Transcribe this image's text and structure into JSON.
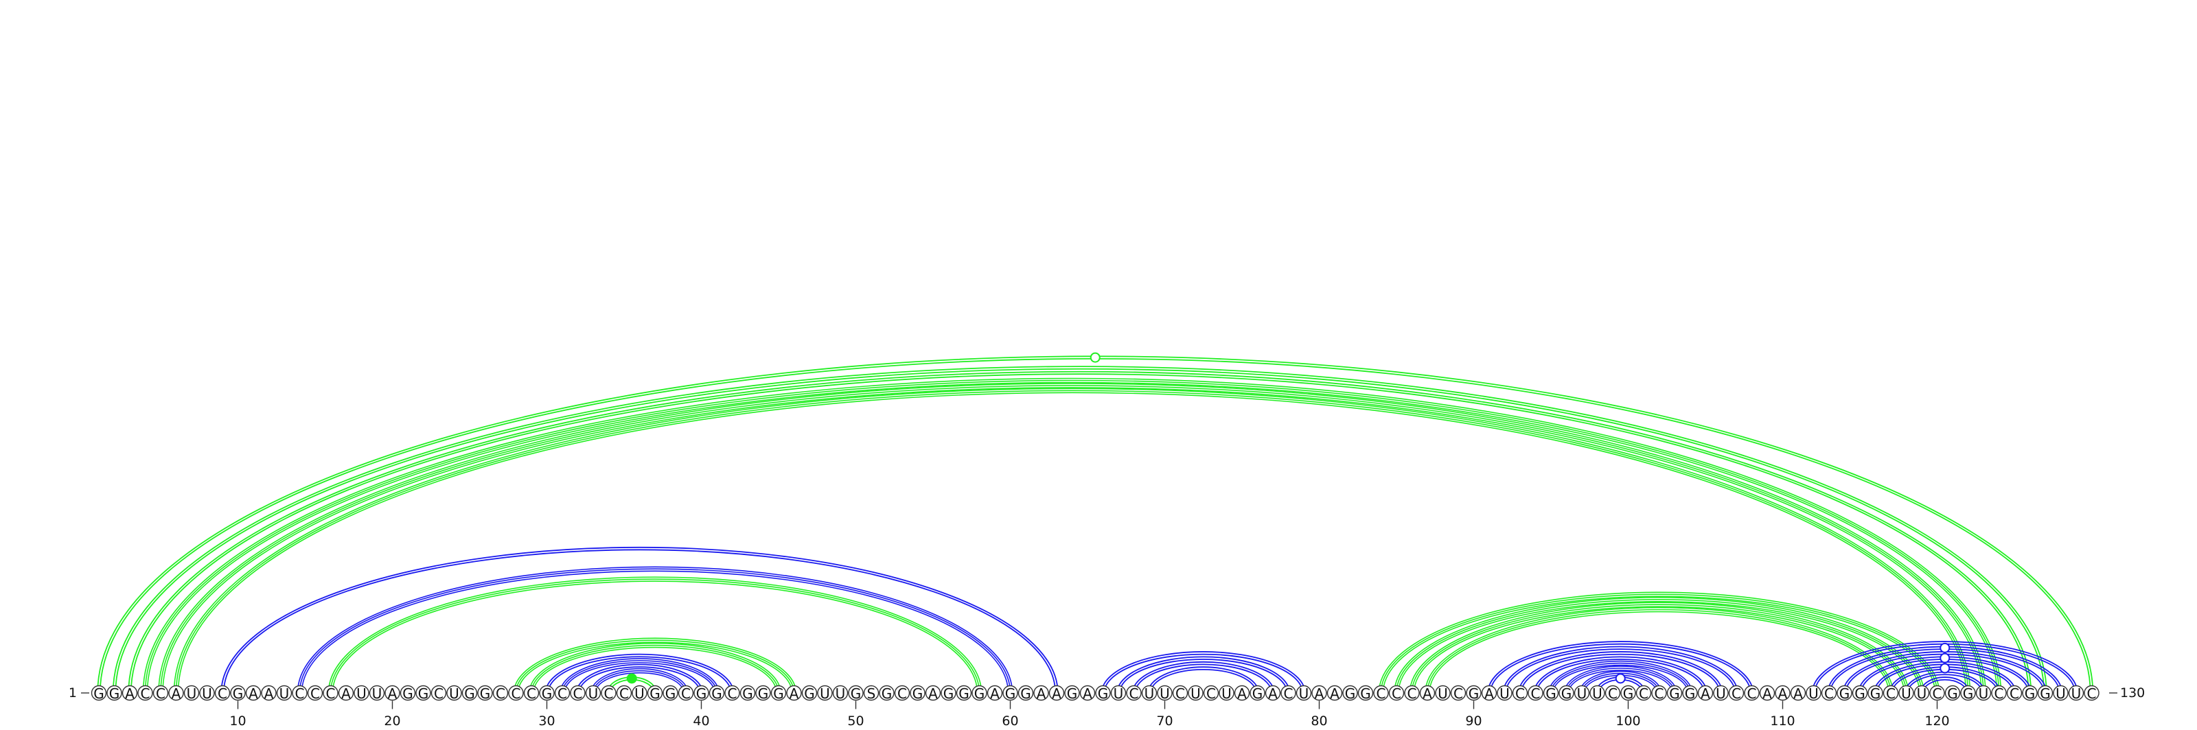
{
  "sequence": "GGACCAUUCGAAUCCCAUUAGGCUGGCCCGCCUCCUGGCGGCGGGAGUUGSGCGAGGGAGGAAGAGUCUUCUCUAGACUAAGGCCCAUCGAUCCGGUUCGCCGGAUCCAAAUCGGGCUUCGGUCCGGUUC",
  "start_label": "1",
  "end_label": "130",
  "ticks": [
    "10",
    "20",
    "30",
    "40",
    "50",
    "60",
    "70",
    "80",
    "90",
    "100",
    "110",
    "120"
  ],
  "colors": {
    "green": "#22ee22",
    "blue": "#1a1aee"
  },
  "arcs": [
    {
      "i": 1,
      "j": 130,
      "color": "green",
      "lines": 2
    },
    {
      "i": 2,
      "j": 127,
      "color": "green",
      "lines": 2
    },
    {
      "i": 3,
      "j": 126,
      "color": "green",
      "lines": 2
    },
    {
      "i": 4,
      "j": 124,
      "color": "green",
      "lines": 3
    },
    {
      "i": 5,
      "j": 123,
      "color": "green",
      "lines": 3
    },
    {
      "i": 6,
      "j": 122,
      "color": "green",
      "lines": 3
    },
    {
      "i": 9,
      "j": 63,
      "color": "blue",
      "lines": 2
    },
    {
      "i": 14,
      "j": 60,
      "color": "blue",
      "lines": 3
    },
    {
      "i": 16,
      "j": 58,
      "color": "green",
      "lines": 3
    },
    {
      "i": 28,
      "j": 46,
      "color": "green",
      "lines": 3
    },
    {
      "i": 29,
      "j": 45,
      "color": "green",
      "lines": 3
    },
    {
      "i": 30,
      "j": 42,
      "color": "blue",
      "lines": 2
    },
    {
      "i": 31,
      "j": 41,
      "color": "blue",
      "lines": 3
    },
    {
      "i": 32,
      "j": 40,
      "color": "blue",
      "lines": 2
    },
    {
      "i": 33,
      "j": 39,
      "color": "blue",
      "lines": 3
    },
    {
      "i": 34,
      "j": 37,
      "color": "green",
      "lines": 2
    },
    {
      "i": 66,
      "j": 79,
      "color": "blue",
      "lines": 2
    },
    {
      "i": 67,
      "j": 78,
      "color": "blue",
      "lines": 2
    },
    {
      "i": 68,
      "j": 77,
      "color": "blue",
      "lines": 2
    },
    {
      "i": 69,
      "j": 76,
      "color": "blue",
      "lines": 2
    },
    {
      "i": 84,
      "j": 120,
      "color": "green",
      "lines": 3
    },
    {
      "i": 85,
      "j": 119,
      "color": "green",
      "lines": 3
    },
    {
      "i": 86,
      "j": 118,
      "color": "green",
      "lines": 3
    },
    {
      "i": 87,
      "j": 117,
      "color": "green",
      "lines": 3
    },
    {
      "i": 91,
      "j": 108,
      "color": "blue",
      "lines": 2
    },
    {
      "i": 92,
      "j": 107,
      "color": "blue",
      "lines": 2
    },
    {
      "i": 93,
      "j": 106,
      "color": "blue",
      "lines": 2
    },
    {
      "i": 94,
      "j": 105,
      "color": "blue",
      "lines": 2
    },
    {
      "i": 95,
      "j": 104,
      "color": "blue",
      "lines": 3
    },
    {
      "i": 96,
      "j": 103,
      "color": "blue",
      "lines": 3
    },
    {
      "i": 97,
      "j": 102,
      "color": "blue",
      "lines": 3
    },
    {
      "i": 98,
      "j": 101,
      "color": "blue",
      "lines": 2
    },
    {
      "i": 112,
      "j": 129,
      "color": "blue",
      "lines": 2
    },
    {
      "i": 113,
      "j": 128,
      "color": "blue",
      "lines": 2
    },
    {
      "i": 114,
      "j": 127,
      "color": "blue",
      "lines": 2
    },
    {
      "i": 115,
      "j": 126,
      "color": "blue",
      "lines": 2
    },
    {
      "i": 116,
      "j": 125,
      "color": "blue",
      "lines": 2
    },
    {
      "i": 117,
      "j": 124,
      "color": "blue",
      "lines": 2
    },
    {
      "i": 118,
      "j": 123,
      "color": "blue",
      "lines": 2
    },
    {
      "i": 119,
      "j": 122,
      "color": "blue",
      "lines": 2
    }
  ],
  "apex_markers": [
    {
      "arc": 0,
      "filled": false
    },
    {
      "arc": 15,
      "filled": true
    },
    {
      "arc": 31,
      "filled": false
    },
    {
      "arc": 33,
      "filled": false
    },
    {
      "arc": 35,
      "filled": false
    },
    {
      "arc": 37,
      "filled": false
    }
  ]
}
